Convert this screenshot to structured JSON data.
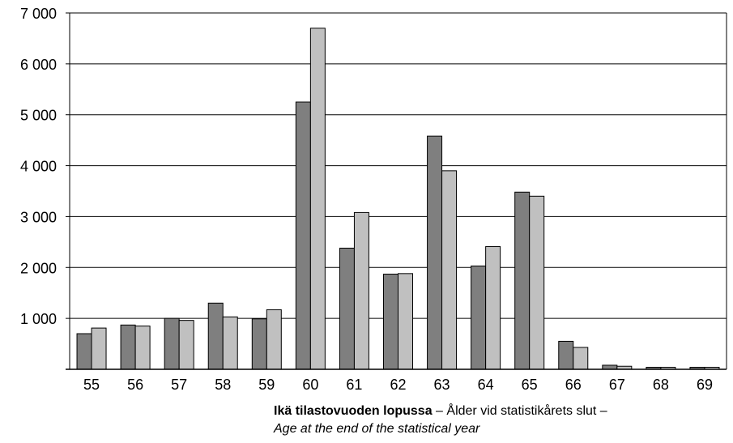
{
  "chart_data": {
    "type": "bar",
    "categories": [
      "55",
      "56",
      "57",
      "58",
      "59",
      "60",
      "61",
      "62",
      "63",
      "64",
      "65",
      "66",
      "67",
      "68",
      "69"
    ],
    "series": [
      {
        "values": [
          700,
          870,
          1000,
          1300,
          990,
          5250,
          2380,
          1870,
          4580,
          2030,
          3480,
          550,
          80,
          40,
          40
        ]
      },
      {
        "values": [
          810,
          850,
          960,
          1030,
          1170,
          6700,
          3080,
          1880,
          3900,
          2410,
          3400,
          430,
          60,
          40,
          40
        ]
      }
    ],
    "series_colors": [
      "#7f7f7f",
      "#c0c0c0"
    ],
    "yticks": [
      "",
      "1 000",
      "2 000",
      "3 000",
      "4 000",
      "5 000",
      "6 000",
      "7 000"
    ],
    "ylim": [
      0,
      7000
    ],
    "grid": true,
    "xlabel": {
      "bold": "Ikä tilastovuoden lopussa",
      "normal": " – Ålder vid statistikårets slut –",
      "italic": "Age at the end of the statistical year"
    }
  }
}
